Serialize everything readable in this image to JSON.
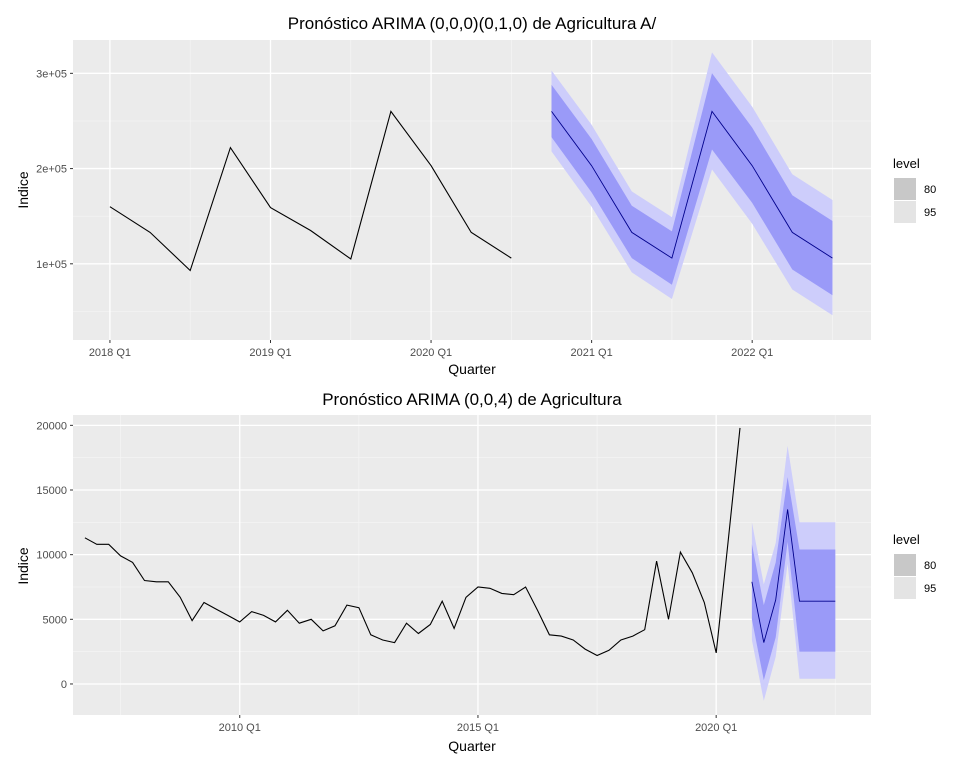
{
  "chart_data": [
    {
      "type": "line",
      "title": "Pronóstico ARIMA (0,0,0)(0,1,0) de Agricultura A/",
      "xlabel": "Quarter",
      "ylabel": "Indice",
      "x_tick_values": [
        2018.0,
        2019.0,
        2020.0,
        2021.0,
        2022.0
      ],
      "x_tick_labels": [
        "2018 Q1",
        "2019 Q1",
        "2020 Q1",
        "2021 Q1",
        "2022 Q1"
      ],
      "y_tick_values": [
        100000,
        200000,
        300000
      ],
      "y_tick_labels": [
        "1e+05",
        "2e+05",
        "3e+05"
      ],
      "xlim": [
        2017.77,
        2020.65,
        2022.74
      ],
      "ylim": [
        20000,
        335000
      ],
      "series": [
        {
          "name": "",
          "x": [
            2018.0,
            2018.25,
            2018.5,
            2018.75,
            2019.0,
            2019.25,
            2019.5,
            2019.75,
            2020.0,
            2020.25,
            2020.5
          ],
          "values": [
            160000,
            133000,
            93000,
            222000,
            159000,
            135000,
            105000,
            260000,
            203000,
            133000,
            106000
          ]
        }
      ],
      "forecast": {
        "x": [
          2020.75,
          2021.0,
          2021.25,
          2021.5,
          2021.75,
          2022.0,
          2022.25,
          2022.5
        ],
        "mean": [
          260000,
          203000,
          133000,
          106000,
          260000,
          203000,
          133000,
          106000
        ],
        "lo80": [
          233000,
          175000,
          106000,
          78000,
          220000,
          164000,
          94000,
          67000
        ],
        "hi80": [
          288000,
          231000,
          161000,
          134000,
          300000,
          243000,
          172000,
          145000
        ],
        "lo95": [
          218000,
          160000,
          91000,
          63000,
          199000,
          142000,
          73000,
          46000
        ],
        "hi95": [
          303000,
          246000,
          176000,
          149000,
          322000,
          265000,
          194000,
          167000
        ]
      },
      "legend": {
        "title": "level",
        "items": [
          "80",
          "95"
        ],
        "position": "right"
      },
      "grid": true
    },
    {
      "type": "line",
      "title": "Pronóstico ARIMA (0,0,4) de Agricultura",
      "xlabel": "Quarter",
      "ylabel": "Indice",
      "x_tick_values": [
        2010.0,
        2015.0,
        2020.0
      ],
      "x_tick_labels": [
        "2010 Q1",
        "2015 Q1",
        "2020 Q1"
      ],
      "y_tick_values": [
        0,
        5000,
        10000,
        15000,
        20000
      ],
      "y_tick_labels": [
        "0",
        "5000",
        "10000",
        "15000",
        "20000"
      ],
      "xlim": [
        2006.5,
        2023.25
      ],
      "ylim": [
        -2400,
        20800
      ],
      "series": [
        {
          "name": "",
          "x": [
            2006.75,
            2007.0,
            2007.25,
            2007.5,
            2007.75,
            2008.0,
            2008.25,
            2008.5,
            2008.75,
            2009.0,
            2009.25,
            2009.5,
            2009.75,
            2010.0,
            2010.25,
            2010.5,
            2010.75,
            2011.0,
            2011.25,
            2011.5,
            2011.75,
            2012.0,
            2012.25,
            2012.5,
            2012.75,
            2013.0,
            2013.25,
            2013.5,
            2013.75,
            2014.0,
            2014.25,
            2014.5,
            2014.75,
            2015.0,
            2015.25,
            2015.5,
            2015.75,
            2016.0,
            2016.25,
            2016.5,
            2016.75,
            2017.0,
            2017.25,
            2017.5,
            2017.75,
            2018.0,
            2018.25,
            2018.5,
            2018.75,
            2019.0,
            2019.25,
            2019.5,
            2019.75,
            2020.0,
            2020.25,
            2020.5
          ],
          "values": [
            11300,
            10800,
            10800,
            9900,
            9400,
            8000,
            7900,
            7900,
            6700,
            4900,
            6300,
            5800,
            5300,
            4800,
            5600,
            5300,
            4800,
            5700,
            4700,
            5000,
            4100,
            4500,
            6100,
            5900,
            3800,
            3400,
            3200,
            4700,
            3900,
            4600,
            6400,
            4300,
            6700,
            7500,
            7400,
            7000,
            6900,
            7500,
            5700,
            3800,
            3700,
            3400,
            2700,
            2200,
            2600,
            3400,
            3700,
            4200,
            9500,
            5000,
            10200,
            8600,
            6300,
            2400,
            11000,
            19800
          ]
        }
      ],
      "forecast": {
        "x": [
          2020.75,
          2021.0,
          2021.25,
          2021.5,
          2021.75,
          2022.0,
          2022.25,
          2022.5
        ],
        "mean": [
          7900,
          3200,
          6500,
          13500,
          6400,
          6400,
          6400,
          6400
        ],
        "lo80": [
          5000,
          300,
          3600,
          11000,
          2500,
          2500,
          2500,
          2500
        ],
        "hi80": [
          10800,
          6100,
          9400,
          16000,
          10400,
          10400,
          10400,
          10400
        ],
        "lo95": [
          3400,
          -1300,
          2100,
          9300,
          400,
          400,
          400,
          400
        ],
        "hi95": [
          12500,
          7700,
          10900,
          18400,
          12500,
          12500,
          12500,
          12500
        ]
      },
      "legend": {
        "title": "level",
        "items": [
          "80",
          "95"
        ],
        "position": "right"
      },
      "grid": true
    }
  ]
}
